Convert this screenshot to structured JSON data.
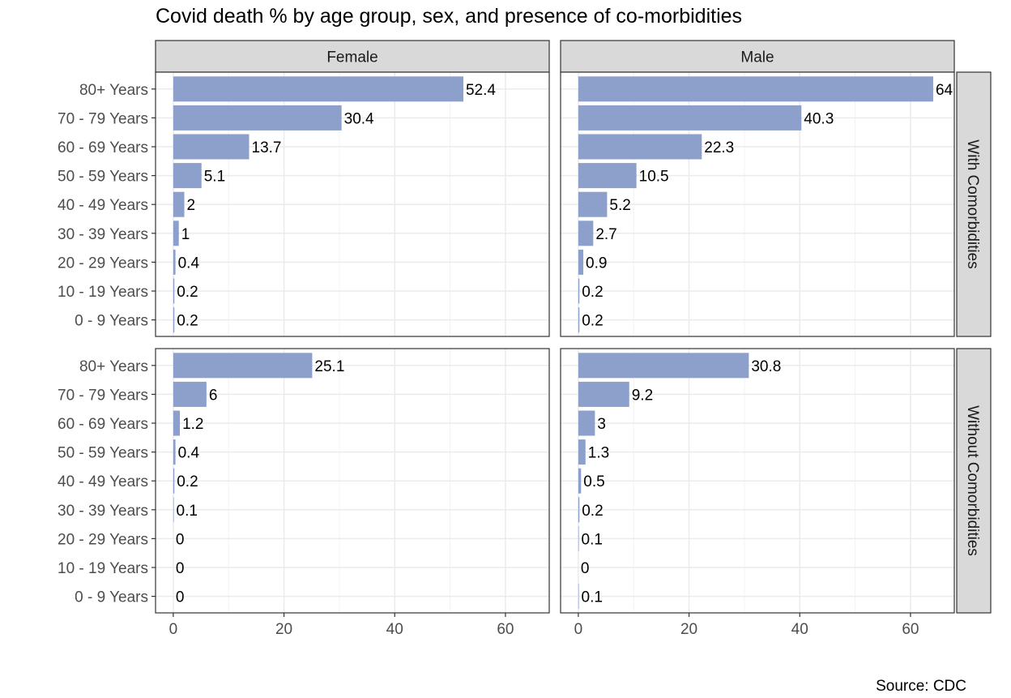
{
  "chart_data": {
    "type": "bar",
    "orientation": "horizontal",
    "title": "Covid death % by age group, sex, and presence of co-morbidities",
    "caption": "Source: CDC",
    "facet_columns": [
      "Female",
      "Male"
    ],
    "facet_rows": [
      "With Comorbidities",
      "Without Comorbidities"
    ],
    "categories": [
      "80+ Years",
      "70 - 79 Years",
      "60 - 69 Years",
      "50 - 59 Years",
      "40 - 49 Years",
      "30 - 39 Years",
      "20 - 29 Years",
      "10 - 19 Years",
      "0 - 9 Years"
    ],
    "x_ticks": [
      0,
      20,
      40,
      60
    ],
    "xlim": [
      0,
      64
    ],
    "bar_color": "#8DA0CB",
    "grid": true,
    "panels": [
      {
        "column": "Female",
        "row": "With Comorbidities",
        "values": [
          52.4,
          30.4,
          13.7,
          5.1,
          2,
          1,
          0.4,
          0.2,
          0.2
        ],
        "labels": [
          "52.4",
          "30.4",
          "13.7",
          "5.1",
          "2",
          "1",
          "0.4",
          "0.2",
          "0.2"
        ]
      },
      {
        "column": "Male",
        "row": "With Comorbidities",
        "values": [
          64.1,
          40.3,
          22.3,
          10.5,
          5.2,
          2.7,
          0.9,
          0.2,
          0.2
        ],
        "labels": [
          "64",
          "40.3",
          "22.3",
          "10.5",
          "5.2",
          "2.7",
          "0.9",
          "0.2",
          "0.2"
        ]
      },
      {
        "column": "Female",
        "row": "Without Comorbidities",
        "values": [
          25.1,
          6,
          1.2,
          0.4,
          0.2,
          0.1,
          0,
          0,
          0
        ],
        "labels": [
          "25.1",
          "6",
          "1.2",
          "0.4",
          "0.2",
          "0.1",
          "0",
          "0",
          "0"
        ]
      },
      {
        "column": "Male",
        "row": "Without Comorbidities",
        "values": [
          30.8,
          9.2,
          3,
          1.3,
          0.5,
          0.2,
          0.1,
          0,
          0.1
        ],
        "labels": [
          "30.8",
          "9.2",
          "3",
          "1.3",
          "0.5",
          "0.2",
          "0.1",
          "0",
          "0.1"
        ]
      }
    ]
  }
}
